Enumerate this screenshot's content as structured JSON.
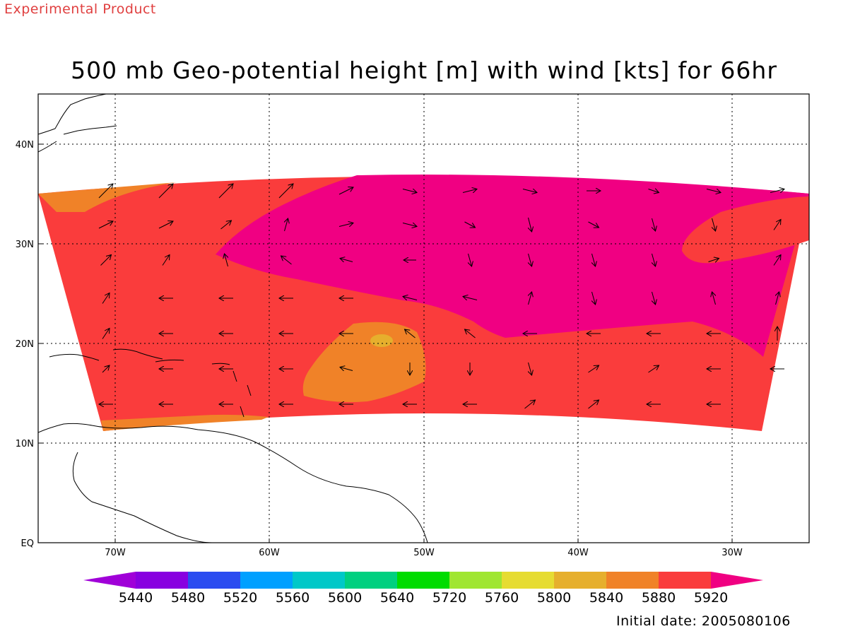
{
  "header": {
    "product_label": "Experimental Product"
  },
  "title": "500 mb Geo-potential height [m] with wind [kts] for 66hr",
  "footer": {
    "initial_date": "Initial date: 2005080106"
  },
  "axes": {
    "lon_labels": [
      "70W",
      "60W",
      "50W",
      "40W",
      "30W"
    ],
    "lat_labels": [
      "40N",
      "30N",
      "20N",
      "10N",
      "EQ"
    ]
  },
  "colorbar": {
    "labels": [
      "5440",
      "5480",
      "5520",
      "5560",
      "5600",
      "5640",
      "5720",
      "5760",
      "5800",
      "5840",
      "5880",
      "5920"
    ],
    "colors": [
      "#a000d8",
      "#8800e0",
      "#2b4cf0",
      "#00a0ff",
      "#00c8c8",
      "#00d080",
      "#00dc00",
      "#a0e632",
      "#e6dc32",
      "#e6af2d",
      "#f08228",
      "#fa3c3c",
      "#f00082"
    ]
  },
  "map": {
    "extent": {
      "lon_min": -75,
      "lon_max": -25,
      "lat_min": 0,
      "lat_max": 45
    },
    "field_colors": {
      "h5880": "#f08228",
      "h5920": "#fa3c3c",
      "h5960": "#f00082",
      "h5840": "#e6af2d"
    }
  }
}
